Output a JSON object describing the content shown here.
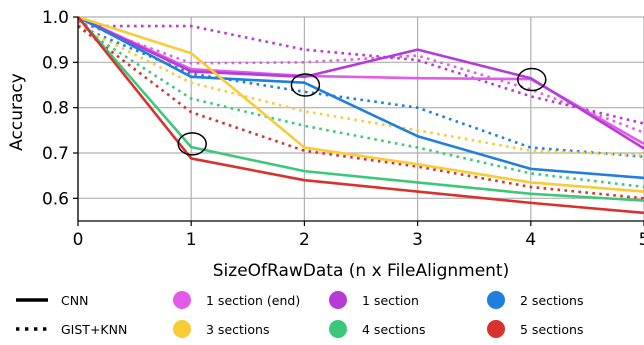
{
  "chart_data": {
    "type": "line",
    "xlabel": "SizeOfRawData (n x FileAlignment)",
    "ylabel": "Accuracy",
    "xlim": [
      0,
      5
    ],
    "ylim": [
      0.55,
      1.0
    ],
    "xticks": [
      "0",
      "1",
      "2",
      "3",
      "4",
      "5"
    ],
    "yticks": [
      "0.6",
      "0.7",
      "0.8",
      "0.9",
      "1.0"
    ],
    "grid": true,
    "legend_position": "bottom",
    "styles": [
      {
        "name": "CNN",
        "dash": "solid"
      },
      {
        "name": "GIST+KNN",
        "dash": "dotted"
      }
    ],
    "groups": [
      {
        "name": "1 section (end)",
        "color": "#e35ce9"
      },
      {
        "name": "1 section",
        "color": "#b63ad6"
      },
      {
        "name": "2 sections",
        "color": "#1f7fdb"
      },
      {
        "name": "3 sections",
        "color": "#f8cb37"
      },
      {
        "name": "4 sections",
        "color": "#3bc878"
      },
      {
        "name": "5 sections",
        "color": "#d8322f"
      }
    ],
    "x": [
      0,
      1,
      2,
      3,
      4,
      5
    ],
    "series": [
      {
        "group": "1 section (end)",
        "style": "CNN",
        "values": [
          1.0,
          0.885,
          0.87,
          0.865,
          0.863,
          0.72
        ]
      },
      {
        "group": "1 section",
        "style": "CNN",
        "values": [
          1.0,
          0.88,
          0.868,
          0.928,
          0.865,
          0.71
        ]
      },
      {
        "group": "2 sections",
        "style": "CNN",
        "values": [
          1.0,
          0.868,
          0.855,
          0.737,
          0.665,
          0.645
        ]
      },
      {
        "group": "3 sections",
        "style": "CNN",
        "values": [
          1.0,
          0.92,
          0.712,
          0.675,
          0.635,
          0.615
        ]
      },
      {
        "group": "4 sections",
        "style": "CNN",
        "values": [
          1.0,
          0.713,
          0.66,
          0.635,
          0.61,
          0.595
        ]
      },
      {
        "group": "5 sections",
        "style": "CNN",
        "values": [
          1.0,
          0.688,
          0.64,
          0.615,
          0.59,
          0.568
        ]
      },
      {
        "group": "1 section (end)",
        "style": "GIST+KNN",
        "values": [
          0.99,
          0.898,
          0.9,
          0.915,
          0.84,
          0.745
        ]
      },
      {
        "group": "1 section",
        "style": "GIST+KNN",
        "values": [
          0.98,
          0.98,
          0.928,
          0.905,
          0.825,
          0.765
        ]
      },
      {
        "group": "2 sections",
        "style": "GIST+KNN",
        "values": [
          0.98,
          0.875,
          0.835,
          0.8,
          0.712,
          0.692
        ]
      },
      {
        "group": "3 sections",
        "style": "GIST+KNN",
        "values": [
          0.98,
          0.855,
          0.792,
          0.75,
          0.705,
          0.695
        ]
      },
      {
        "group": "4 sections",
        "style": "GIST+KNN",
        "values": [
          0.98,
          0.82,
          0.76,
          0.712,
          0.655,
          0.625
        ]
      },
      {
        "group": "5 sections",
        "style": "GIST+KNN",
        "values": [
          0.98,
          0.79,
          0.705,
          0.67,
          0.625,
          0.6
        ]
      }
    ],
    "annotations": [
      {
        "type": "ellipse",
        "x": 1,
        "y": 0.72
      },
      {
        "type": "ellipse",
        "x": 2,
        "y": 0.85
      },
      {
        "type": "ellipse",
        "x": 4,
        "y": 0.862
      }
    ]
  }
}
